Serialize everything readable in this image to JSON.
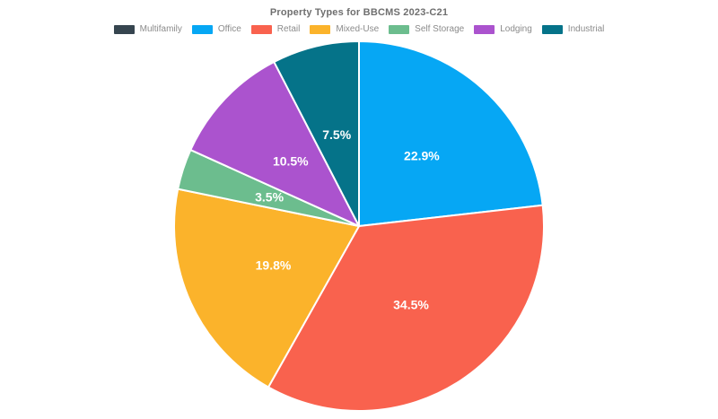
{
  "chart": {
    "background_color": "#ffffff",
    "label_text_color": "#ffffff",
    "title_text_color": "#6f6f6f",
    "legend_text_color": "#8b8b8b",
    "slice_border_color": "#ffffff"
  },
  "chart_data": {
    "type": "pie",
    "title": "Property Types for BBCMS 2023-C21",
    "legend_position": "top",
    "start_angle_deg": 0,
    "direction": "clockwise",
    "series": [
      {
        "label": "Multifamily",
        "value": 0,
        "pct_label": "",
        "color": "#36454F"
      },
      {
        "label": "Office",
        "value": 22.9,
        "pct_label": "22.9%",
        "color": "#06A7F4"
      },
      {
        "label": "Retail",
        "value": 34.5,
        "pct_label": "34.5%",
        "color": "#F9624E"
      },
      {
        "label": "Mixed-Use",
        "value": 19.8,
        "pct_label": "19.8%",
        "color": "#FBB32B"
      },
      {
        "label": "Self Storage",
        "value": 3.5,
        "pct_label": "3.5%",
        "color": "#6CBD8E"
      },
      {
        "label": "Lodging",
        "value": 10.5,
        "pct_label": "10.5%",
        "color": "#AB53CE"
      },
      {
        "label": "Industrial",
        "value": 7.5,
        "pct_label": "7.5%",
        "color": "#057389"
      }
    ]
  }
}
